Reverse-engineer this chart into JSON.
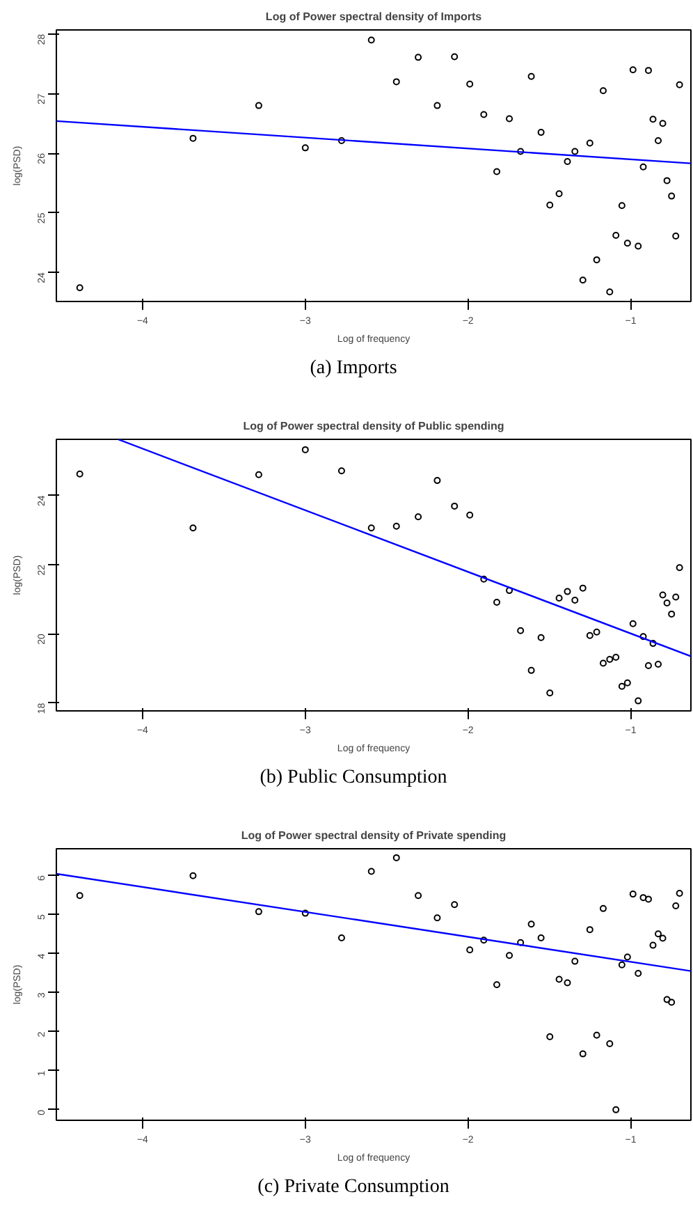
{
  "chart_data": [
    {
      "type": "scatter",
      "title": "Log of Power spectral density of Imports",
      "xlabel": "Log of frequency",
      "ylabel": "log(PSD)",
      "xlim": [
        -4.53,
        -0.63
      ],
      "ylim": [
        23.51,
        28.07
      ],
      "xticks": [
        -4,
        -3,
        -2,
        -1
      ],
      "yticks": [
        24,
        25,
        26,
        27,
        28
      ],
      "grid": false,
      "annotations": [
        "(a) Imports"
      ],
      "series": [
        {
          "color": "#000000",
          "marker": "circle",
          "x": [
            -4.386,
            -3.69,
            -3.286,
            -3.0,
            -2.777,
            -2.594,
            -2.44,
            -2.306,
            -2.189,
            -2.083,
            -1.989,
            -1.903,
            -1.823,
            -1.746,
            -1.677,
            -1.611,
            -1.551,
            -1.497,
            -1.44,
            -1.389,
            -1.343,
            -1.294,
            -1.251,
            -1.209,
            -1.169,
            -1.129,
            -1.091,
            -1.054,
            -1.02,
            -0.986,
            -0.954,
            -0.923,
            -0.891,
            -0.863,
            -0.831,
            -0.803,
            -0.777,
            -0.749,
            -0.723,
            -0.7
          ],
          "values": [
            23.74,
            26.25,
            26.8,
            26.09,
            26.21,
            27.9,
            27.2,
            27.61,
            26.8,
            27.62,
            27.16,
            26.65,
            25.69,
            26.58,
            26.03,
            27.29,
            26.35,
            25.13,
            25.32,
            25.86,
            26.03,
            23.87,
            26.17,
            24.21,
            27.05,
            23.67,
            24.62,
            25.12,
            24.49,
            27.4,
            24.44,
            25.77,
            27.39,
            26.57,
            26.21,
            26.5,
            25.54,
            25.28,
            24.61,
            27.15
          ]
        },
        {
          "type": "line",
          "color": "#0000ff",
          "x": [
            -4.53,
            -0.63
          ],
          "values": [
            26.54,
            25.83
          ]
        }
      ]
    },
    {
      "type": "scatter",
      "title": "Log of Power spectral density of Public spending",
      "xlabel": "Log of frequency",
      "ylabel": "log(PSD)",
      "xlim": [
        -4.53,
        -0.63
      ],
      "ylim": [
        17.77,
        25.62
      ],
      "xticks": [
        -4,
        -3,
        -2,
        -1
      ],
      "yticks": [
        18,
        20,
        22,
        24
      ],
      "grid": false,
      "annotations": [
        "(b) Public Consumption"
      ],
      "series": [
        {
          "color": "#000000",
          "marker": "circle",
          "x": [
            -4.386,
            -3.69,
            -3.286,
            -3.0,
            -2.777,
            -2.594,
            -2.44,
            -2.306,
            -2.189,
            -2.083,
            -1.989,
            -1.903,
            -1.823,
            -1.746,
            -1.677,
            -1.611,
            -1.551,
            -1.497,
            -1.44,
            -1.389,
            -1.343,
            -1.294,
            -1.251,
            -1.209,
            -1.169,
            -1.129,
            -1.091,
            -1.054,
            -1.02,
            -0.986,
            -0.954,
            -0.923,
            -0.891,
            -0.863,
            -0.831,
            -0.803,
            -0.777,
            -0.749,
            -0.723,
            -0.7
          ],
          "values": [
            24.62,
            23.06,
            24.6,
            25.32,
            24.71,
            23.06,
            23.11,
            23.38,
            24.43,
            23.69,
            23.43,
            21.58,
            20.91,
            21.25,
            20.09,
            18.94,
            19.89,
            18.29,
            21.03,
            21.22,
            20.97,
            21.32,
            19.95,
            20.05,
            19.15,
            19.26,
            19.32,
            18.48,
            18.58,
            20.29,
            18.06,
            19.92,
            19.08,
            19.72,
            19.12,
            21.12,
            20.89,
            20.57,
            21.06,
            21.91
          ]
        },
        {
          "type": "line",
          "color": "#0000ff",
          "x": [
            -4.151,
            -0.63
          ],
          "values": [
            25.62,
            19.35
          ]
        }
      ]
    },
    {
      "type": "scatter",
      "title": "Log of Power spectral density of Private spending",
      "xlabel": "Log of frequency",
      "ylabel": "log(PSD)",
      "xlim": [
        -4.53,
        -0.63
      ],
      "ylim": [
        -0.27,
        6.68
      ],
      "xticks": [
        -4,
        -3,
        -2,
        -1
      ],
      "yticks": [
        0,
        1,
        2,
        3,
        4,
        5,
        6
      ],
      "grid": false,
      "annotations": [
        "(c) Private Consumption"
      ],
      "series": [
        {
          "color": "#000000",
          "marker": "circle",
          "x": [
            -4.386,
            -3.69,
            -3.286,
            -3.0,
            -2.777,
            -2.594,
            -2.44,
            -2.306,
            -2.189,
            -2.083,
            -1.989,
            -1.903,
            -1.823,
            -1.746,
            -1.677,
            -1.611,
            -1.551,
            -1.497,
            -1.44,
            -1.389,
            -1.343,
            -1.294,
            -1.251,
            -1.209,
            -1.169,
            -1.129,
            -1.091,
            -1.054,
            -1.02,
            -0.986,
            -0.954,
            -0.923,
            -0.891,
            -0.863,
            -0.831,
            -0.803,
            -0.777,
            -0.749,
            -0.723,
            -0.7
          ],
          "values": [
            5.48,
            5.99,
            5.07,
            5.03,
            4.4,
            6.1,
            6.45,
            5.48,
            4.91,
            5.25,
            4.09,
            4.34,
            3.2,
            3.95,
            4.28,
            4.75,
            4.4,
            1.87,
            3.34,
            3.25,
            3.8,
            1.43,
            4.61,
            1.91,
            5.15,
            1.69,
            0.0,
            3.71,
            3.91,
            5.52,
            3.49,
            5.43,
            5.39,
            4.21,
            4.5,
            4.39,
            2.82,
            2.75,
            5.22,
            5.54
          ]
        },
        {
          "type": "line",
          "color": "#0000ff",
          "x": [
            -4.53,
            -0.63
          ],
          "values": [
            6.04,
            3.55
          ]
        }
      ]
    }
  ]
}
